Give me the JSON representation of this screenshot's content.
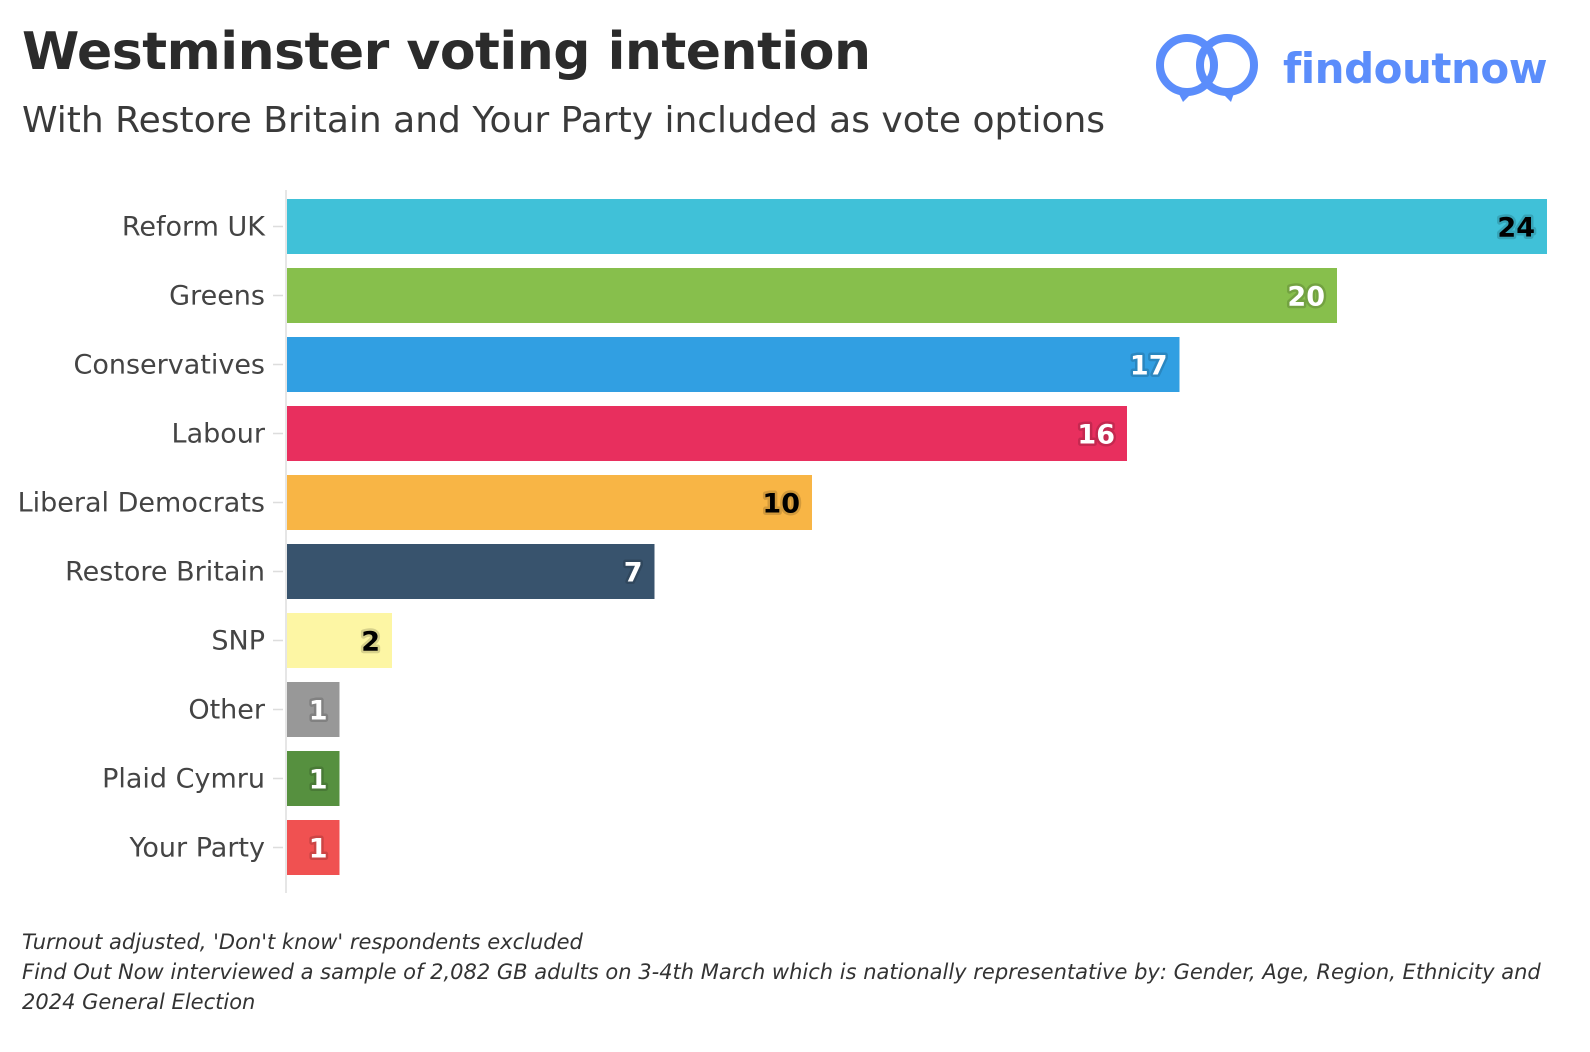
{
  "header": {
    "title": "Westminster voting intention",
    "subtitle": "With Restore Britain and Your Party included as vote options",
    "logo_text": "findoutnow",
    "logo_color": "#5b8dfb"
  },
  "chart_data": {
    "type": "bar",
    "orientation": "horizontal",
    "categories": [
      "Reform UK",
      "Greens",
      "Conservatives",
      "Labour",
      "Liberal Democrats",
      "Restore Britain",
      "SNP",
      "Other",
      "Plaid Cymru",
      "Your Party"
    ],
    "values": [
      24,
      20,
      17,
      16,
      10,
      7,
      2,
      1,
      1,
      1
    ],
    "value_labels": [
      "24",
      "20",
      "17",
      "16",
      "10",
      "7",
      "2",
      "1",
      "1",
      "1"
    ],
    "colors": [
      "#40c1d8",
      "#87bf4c",
      "#319fe2",
      "#e82f5e",
      "#f8b545",
      "#38536d",
      "#fdf6a4",
      "#989898",
      "#56903f",
      "#f05151"
    ],
    "label_colors": [
      "#000000",
      "#ffffff",
      "#ffffff",
      "#ffffff",
      "#000000",
      "#ffffff",
      "#000000",
      "#ffffff",
      "#ffffff",
      "#ffffff"
    ],
    "xlim": [
      0,
      24
    ],
    "grid": false,
    "x_axis_visible": false
  },
  "footnotes": [
    "Turnout adjusted, 'Don't know' respondents excluded",
    "Find Out Now interviewed a sample of 2,082 GB adults on 3-4th March which is nationally representative by: Gender, Age, Region, Ethnicity and",
    "2024 General Election"
  ]
}
